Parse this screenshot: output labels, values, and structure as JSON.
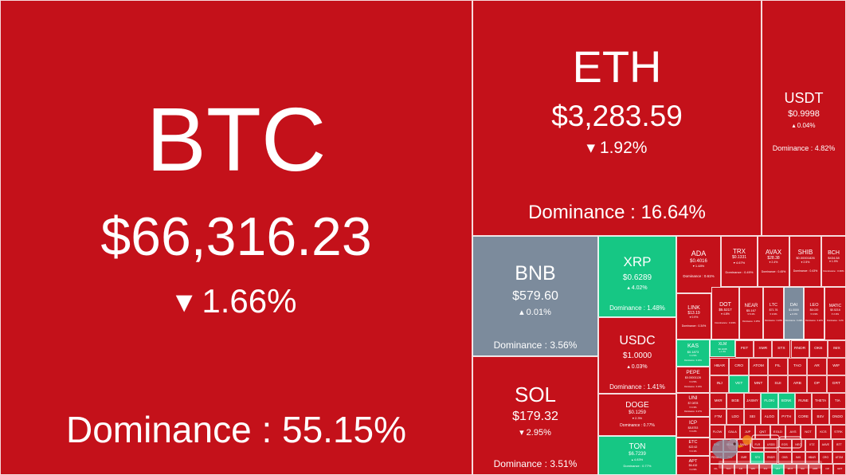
{
  "colors": {
    "down": "#c4111a",
    "up": "#16c784",
    "flat": "#7c8b9c"
  },
  "btc": {
    "symbol": "BTC",
    "price": "$66,316.23",
    "change": "▾ 1.66%",
    "dominance": "Dominance : 55.15%"
  },
  "eth": {
    "symbol": "ETH",
    "price": "$3,283.59",
    "change": "▾ 1.92%",
    "dominance": "Dominance : 16.64%"
  },
  "usdt": {
    "symbol": "USDT",
    "price": "$0.9998",
    "change": "▴ 0.04%",
    "dominance": "Dominance : 4.82%"
  },
  "bnb": {
    "symbol": "BNB",
    "price": "$579.60",
    "change": "▴ 0.01%",
    "dominance": "Dominance : 3.56%"
  },
  "sol": {
    "symbol": "SOL",
    "price": "$179.32",
    "change": "▾ 2.95%",
    "dominance": "Dominance : 3.51%"
  },
  "xrp": {
    "symbol": "XRP",
    "price": "$0.6289",
    "change": "▴ 4.02%",
    "dominance": "Dominance : 1.48%"
  },
  "usdc": {
    "symbol": "USDC",
    "price": "$1.0000",
    "change": "▴ 0.03%",
    "dominance": "Dominance : 1.41%"
  },
  "doge": {
    "symbol": "DOGE",
    "price": "$0.1259",
    "change": "▾ 2.3%",
    "dominance": "Dominance : 0.77%"
  },
  "ton": {
    "symbol": "TON",
    "price": "$6.7239",
    "change": "▴ 4.83%",
    "dominance": "Dominance : 0.77%"
  },
  "ada": {
    "symbol": "ADA",
    "price": "$0.4016",
    "change": "▾ 1.48%",
    "dominance": "Dominance : 0.61%"
  },
  "trx": {
    "symbol": "TRX",
    "price": "$0.1331",
    "change": "▾ 4.67%",
    "dominance": "Dominance : 0.49%"
  },
  "avax": {
    "symbol": "AVAX",
    "price": "$28.38",
    "change": "▾ 2.4%",
    "dominance": "Dominance : 0.45%"
  },
  "shib": {
    "symbol": "SHIB",
    "price": "$0.00001826",
    "change": "▾ 2.5%",
    "dominance": "Dominance : 0.43%"
  },
  "bch": {
    "symbol": "BCH",
    "price": "$434.58",
    "change": "▾ 1.9%",
    "dominance": "Dominance : 0.36%"
  },
  "link": {
    "symbol": "LINK",
    "price": "$13.19",
    "change": "▾ 0.9%",
    "dominance": "Dominance : 0.34%"
  },
  "dot": {
    "symbol": "DOT",
    "price": "$5.5217",
    "change": "▾ 4.8%",
    "dominance": "Dominance : 0.33%"
  },
  "near": {
    "symbol": "NEAR",
    "price": "$5.167",
    "change": "▾ 5.3%",
    "dominance": "Dominance : 0.25%"
  },
  "ltc": {
    "symbol": "LTC",
    "price": "$71.76",
    "change": "▾ 3.9%",
    "dominance": "Dominance : 0.23%"
  },
  "dai": {
    "symbol": "DAI",
    "price": "$1.0000",
    "change": "▴ 0.0%",
    "dominance": "Dominance : 0.22%"
  },
  "leo": {
    "symbol": "LEO",
    "price": "$6.020",
    "change": "▾ 0.9%",
    "dominance": "Dominance : 0.22%"
  },
  "matic": {
    "symbol": "MATIC",
    "price": "$0.5216",
    "change": "▾ 2.9%",
    "dominance": "Dominance : 0.2%"
  },
  "kas": {
    "symbol": "KAS",
    "price": "$0.1873",
    "change": "▾ 3.5%",
    "dominance": "Dominance : 0.19%"
  },
  "xlm": {
    "symbol": "XLM",
    "price": "$0.1008",
    "change": "▴ 1.4%"
  },
  "pepe": {
    "symbol": "PEPE",
    "price": "$0.00001126",
    "change": "▾ 3.5%",
    "dominance": "Dominance : 0.19%"
  },
  "uni": {
    "symbol": "UNI",
    "price": "$7.0878",
    "change": "▾ 3.3%",
    "dominance": "Dominance : 0.17%"
  },
  "icp": {
    "symbol": "ICP",
    "price": "$8.8753",
    "change": "▾ 3.2%"
  },
  "etc": {
    "symbol": "ETC",
    "price": "$22.62",
    "change": "▾ 3.1%"
  },
  "apt": {
    "symbol": "APT",
    "price": "$6.432",
    "change": "▾ 2.9%"
  },
  "small": [
    "FET",
    "XMR",
    "STX",
    "RNDR",
    "OKB",
    "IMX",
    "HBAR",
    "CRO",
    "ATOM",
    "FIL",
    "TAO",
    "AR",
    "WIF",
    "INJ",
    "VET",
    "MNT",
    "SUI",
    "ARB",
    "OP",
    "GRT",
    "MKR",
    "BGB",
    "JASMY",
    "FLOKI",
    "BONK",
    "RUNE",
    "THETA",
    "TIA",
    "FTM",
    "LDO",
    "SEI",
    "ALGO",
    "PYTH",
    "CORE",
    "BSV",
    "ONDO",
    "FLOW",
    "GALA",
    "JUP",
    "QNT",
    "EGLD",
    "AXS",
    "NOT",
    "KCS",
    "STRK",
    "CHZ",
    "BEAM",
    "SAND",
    "FLR",
    "USDD",
    "EOS",
    "NEO",
    "XTZ",
    "AAVE",
    "BTT",
    "PENDLE"
  ]
}
